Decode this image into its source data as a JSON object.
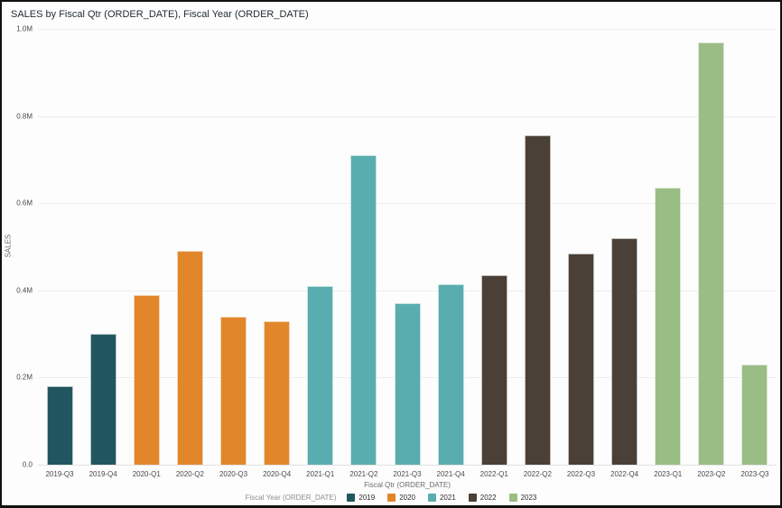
{
  "window": {
    "title": "SALES by Fiscal Qtr (ORDER_DATE), Fiscal Year (ORDER_DATE)"
  },
  "chart_data": {
    "type": "bar",
    "title": "SALES by Fiscal Qtr (ORDER_DATE), Fiscal Year (ORDER_DATE)",
    "xlabel": "Fiscal Qtr (ORDER_DATE)",
    "ylabel": "SALES",
    "legend_title": "Fiscal Year (ORDER_DATE)",
    "legend_position": "bottom",
    "grid": true,
    "ylim": [
      0,
      1000000
    ],
    "y_ticks": [
      {
        "value": 0,
        "label": "0.0"
      },
      {
        "value": 200000,
        "label": "0.2M"
      },
      {
        "value": 400000,
        "label": "0.4M"
      },
      {
        "value": 600000,
        "label": "0.6M"
      },
      {
        "value": 800000,
        "label": "0.8M"
      },
      {
        "value": 1000000,
        "label": "1.0M"
      }
    ],
    "categories": [
      "2019-Q3",
      "2019-Q4",
      "2020-Q1",
      "2020-Q2",
      "2020-Q3",
      "2020-Q4",
      "2021-Q1",
      "2021-Q2",
      "2021-Q3",
      "2021-Q4",
      "2022-Q1",
      "2022-Q2",
      "2022-Q3",
      "2022-Q4",
      "2023-Q1",
      "2023-Q2",
      "2023-Q3"
    ],
    "points": [
      {
        "category": "2019-Q3",
        "year": "2019",
        "value": 180000
      },
      {
        "category": "2019-Q4",
        "year": "2019",
        "value": 300000
      },
      {
        "category": "2020-Q1",
        "year": "2020",
        "value": 390000
      },
      {
        "category": "2020-Q2",
        "year": "2020",
        "value": 490000
      },
      {
        "category": "2020-Q3",
        "year": "2020",
        "value": 340000
      },
      {
        "category": "2020-Q4",
        "year": "2020",
        "value": 330000
      },
      {
        "category": "2021-Q1",
        "year": "2021",
        "value": 410000
      },
      {
        "category": "2021-Q2",
        "year": "2021",
        "value": 710000
      },
      {
        "category": "2021-Q3",
        "year": "2021",
        "value": 370000
      },
      {
        "category": "2021-Q4",
        "year": "2021",
        "value": 415000
      },
      {
        "category": "2022-Q1",
        "year": "2022",
        "value": 435000
      },
      {
        "category": "2022-Q2",
        "year": "2022",
        "value": 755000
      },
      {
        "category": "2022-Q3",
        "year": "2022",
        "value": 485000
      },
      {
        "category": "2022-Q4",
        "year": "2022",
        "value": 520000
      },
      {
        "category": "2023-Q1",
        "year": "2023",
        "value": 635000
      },
      {
        "category": "2023-Q2",
        "year": "2023",
        "value": 970000
      },
      {
        "category": "2023-Q3",
        "year": "2023",
        "value": 230000
      }
    ],
    "legend_entries": [
      "2019",
      "2020",
      "2021",
      "2022",
      "2023"
    ],
    "series_colors": {
      "2019": "#22565E",
      "2020": "#E2862B",
      "2021": "#59ADAE",
      "2022": "#4A4037",
      "2023": "#99BD85"
    }
  },
  "colors": {
    "background": "#FDFDFD",
    "gridline": "#EDEDED",
    "axis_text": "#4A4A4A",
    "title_text": "#1E2A30",
    "border": "#111111"
  }
}
